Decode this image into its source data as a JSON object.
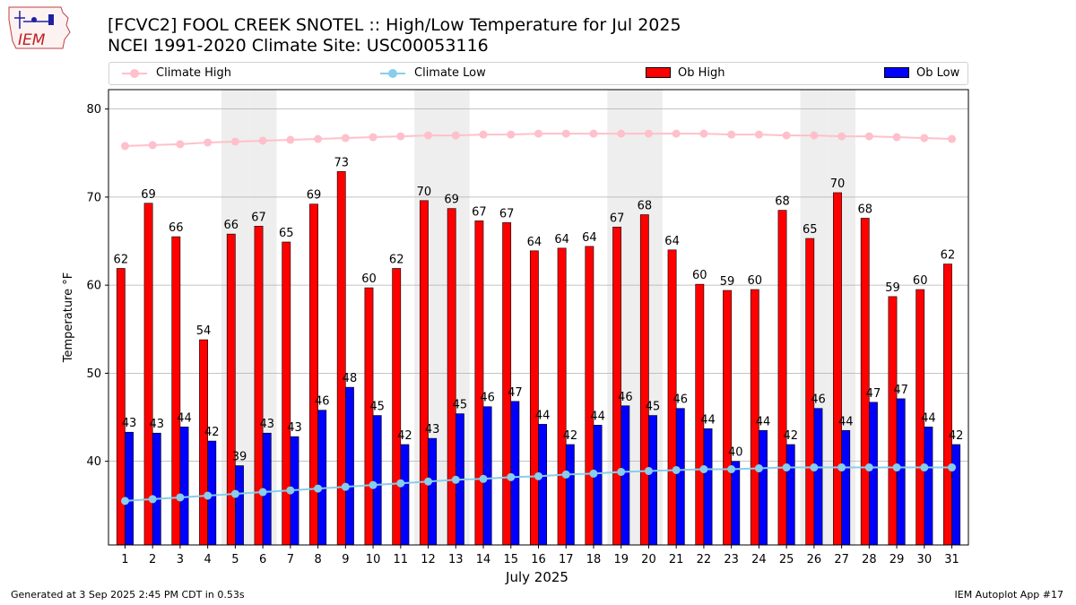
{
  "header": {
    "logo_text": "IEM",
    "title_line1": "[FCVC2] FOOL CREEK SNOTEL :: High/Low Temperature for Jul 2025",
    "title_line2": "NCEI 1991-2020 Climate Site: USC00053116"
  },
  "footer": {
    "left": "Generated at 3 Sep 2025 2:45 PM CDT in 0.53s",
    "right": "IEM Autoplot App #17"
  },
  "colors": {
    "ob_high": "#ff0000",
    "ob_low": "#0000ff",
    "climate_high": "#ffc0cb",
    "climate_low": "#87ceeb",
    "weekend_band": "#eeeeee",
    "grid": "#b0b0b0"
  },
  "chart_data": {
    "type": "bar",
    "xlabel": "July 2025",
    "ylabel": "Temperature °F",
    "ylim": [
      30.5,
      82.2
    ],
    "yticks": [
      40,
      50,
      60,
      70,
      80
    ],
    "grid": "horizontal",
    "legend_placement": "top",
    "categories": [
      "1",
      "2",
      "3",
      "4",
      "5",
      "6",
      "7",
      "8",
      "9",
      "10",
      "11",
      "12",
      "13",
      "14",
      "15",
      "16",
      "17",
      "18",
      "19",
      "20",
      "21",
      "22",
      "23",
      "24",
      "25",
      "26",
      "27",
      "28",
      "29",
      "30",
      "31"
    ],
    "shaded_days": [
      5,
      6,
      12,
      13,
      19,
      20,
      26,
      27
    ],
    "series": [
      {
        "name": "Ob High",
        "kind": "bar",
        "values": [
          61.9,
          69.3,
          65.5,
          53.8,
          65.8,
          66.7,
          64.9,
          69.2,
          72.9,
          59.7,
          61.9,
          69.6,
          68.7,
          67.3,
          67.1,
          63.9,
          64.2,
          64.4,
          66.6,
          68.0,
          64.0,
          60.1,
          59.4,
          59.5,
          68.5,
          65.3,
          70.5,
          67.6,
          58.7,
          59.5,
          62.4
        ],
        "labels": [
          "62",
          "69",
          "66",
          "54",
          "66",
          "67",
          "65",
          "69",
          "73",
          "60",
          "62",
          "70",
          "69",
          "67",
          "67",
          "64",
          "64",
          "64",
          "67",
          "68",
          "64",
          "60",
          "59",
          "60",
          "68",
          "65",
          "70",
          "68",
          "59",
          "60",
          "62"
        ]
      },
      {
        "name": "Ob Low",
        "kind": "bar",
        "values": [
          43.3,
          43.2,
          43.9,
          42.3,
          39.5,
          43.2,
          42.8,
          45.8,
          48.4,
          45.2,
          41.9,
          42.6,
          45.4,
          46.2,
          46.8,
          44.2,
          41.9,
          44.1,
          46.3,
          45.2,
          46.0,
          43.7,
          40.0,
          43.5,
          41.9,
          46.0,
          43.5,
          46.7,
          47.1,
          43.9,
          41.9
        ],
        "labels": [
          "43",
          "43",
          "44",
          "42",
          "39",
          "43",
          "43",
          "46",
          "48",
          "45",
          "42",
          "43",
          "45",
          "46",
          "47",
          "44",
          "42",
          "44",
          "46",
          "45",
          "46",
          "44",
          "40",
          "44",
          "42",
          "46",
          "44",
          "47",
          "47",
          "44",
          "42"
        ]
      },
      {
        "name": "Climate High",
        "kind": "line",
        "values": [
          75.8,
          75.9,
          76.0,
          76.2,
          76.3,
          76.4,
          76.5,
          76.6,
          76.7,
          76.8,
          76.9,
          77.0,
          77.0,
          77.1,
          77.1,
          77.2,
          77.2,
          77.2,
          77.2,
          77.2,
          77.2,
          77.2,
          77.1,
          77.1,
          77.0,
          77.0,
          76.9,
          76.9,
          76.8,
          76.7,
          76.6
        ]
      },
      {
        "name": "Climate Low",
        "kind": "line",
        "values": [
          35.5,
          35.7,
          35.9,
          36.1,
          36.3,
          36.5,
          36.7,
          36.9,
          37.1,
          37.3,
          37.5,
          37.7,
          37.9,
          38.0,
          38.2,
          38.3,
          38.5,
          38.6,
          38.8,
          38.9,
          39.0,
          39.1,
          39.1,
          39.2,
          39.3,
          39.3,
          39.3,
          39.3,
          39.3,
          39.3,
          39.3
        ]
      }
    ]
  }
}
